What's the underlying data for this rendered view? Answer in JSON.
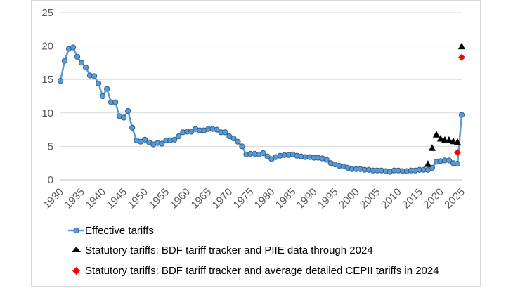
{
  "chart_data": {
    "type": "line",
    "title": "",
    "xlabel": "",
    "ylabel": "",
    "xlim": [
      1930,
      2025
    ],
    "ylim": [
      0,
      25
    ],
    "grid": "horizontal",
    "legend_position": "bottom",
    "x_ticks": [
      "1930",
      "1935",
      "1940",
      "1945",
      "1950",
      "1955",
      "1960",
      "1965",
      "1970",
      "1975",
      "1980",
      "1985",
      "1990",
      "1995",
      "2000",
      "2005",
      "2010",
      "2015",
      "2020",
      "2025"
    ],
    "y_ticks": [
      "0",
      "5",
      "10",
      "15",
      "20",
      "25"
    ],
    "colors": {
      "effective": "#5b9bd5",
      "effective_marker_stroke": "#2f5f8f",
      "bdf_piie": "#000000",
      "bdf_cepii": "#ff0000",
      "grid": "#d9d9d9"
    },
    "series": [
      {
        "name": "Effective tariffs",
        "style": "line-with-circle-markers",
        "x": [
          1930,
          1931,
          1932,
          1933,
          1934,
          1935,
          1936,
          1937,
          1938,
          1939,
          1940,
          1941,
          1942,
          1943,
          1944,
          1945,
          1946,
          1947,
          1948,
          1949,
          1950,
          1951,
          1952,
          1953,
          1954,
          1955,
          1956,
          1957,
          1958,
          1959,
          1960,
          1961,
          1962,
          1963,
          1964,
          1965,
          1966,
          1967,
          1968,
          1969,
          1970,
          1971,
          1972,
          1973,
          1974,
          1975,
          1976,
          1977,
          1978,
          1979,
          1980,
          1981,
          1982,
          1983,
          1984,
          1985,
          1986,
          1987,
          1988,
          1989,
          1990,
          1991,
          1992,
          1993,
          1994,
          1995,
          1996,
          1997,
          1998,
          1999,
          2000,
          2001,
          2002,
          2003,
          2004,
          2005,
          2006,
          2007,
          2008,
          2009,
          2010,
          2011,
          2012,
          2013,
          2014,
          2015,
          2016,
          2017,
          2018,
          2019,
          2020,
          2021,
          2022,
          2023,
          2024,
          2025
        ],
        "values": [
          14.8,
          17.8,
          19.6,
          19.8,
          18.4,
          17.5,
          16.8,
          15.6,
          15.5,
          14.4,
          12.5,
          13.6,
          11.6,
          11.6,
          9.5,
          9.3,
          10.3,
          7.8,
          5.9,
          5.7,
          6.0,
          5.6,
          5.3,
          5.5,
          5.4,
          5.9,
          5.9,
          6.0,
          6.5,
          7.1,
          7.2,
          7.2,
          7.6,
          7.4,
          7.4,
          7.6,
          7.6,
          7.5,
          7.1,
          7.1,
          6.5,
          6.2,
          5.7,
          5.0,
          3.8,
          3.9,
          3.9,
          3.8,
          4.0,
          3.5,
          3.1,
          3.4,
          3.6,
          3.7,
          3.7,
          3.8,
          3.6,
          3.5,
          3.4,
          3.4,
          3.3,
          3.3,
          3.2,
          3.0,
          2.5,
          2.3,
          2.1,
          2.0,
          1.8,
          1.6,
          1.6,
          1.6,
          1.5,
          1.5,
          1.4,
          1.4,
          1.4,
          1.3,
          1.2,
          1.4,
          1.4,
          1.3,
          1.3,
          1.4,
          1.4,
          1.5,
          1.5,
          1.5,
          1.8,
          2.7,
          2.8,
          2.9,
          2.9,
          2.5,
          2.4,
          9.7
        ]
      },
      {
        "name": "Statutory tariffs: BDF tariff tracker and PIIE data through 2024",
        "style": "triangle-markers",
        "x": [
          2017,
          2018,
          2019,
          2020,
          2021,
          2022,
          2023,
          2024,
          2025
        ],
        "values": [
          2.4,
          4.8,
          6.8,
          6.2,
          6.0,
          6.0,
          5.8,
          5.7,
          20.0
        ]
      },
      {
        "name": "Statutory tariffs: BDF tariff tracker and average detailed CEPII tariffs in 2024",
        "style": "diamond-markers",
        "x": [
          2024,
          2025
        ],
        "values": [
          4.1,
          18.3
        ]
      }
    ]
  }
}
